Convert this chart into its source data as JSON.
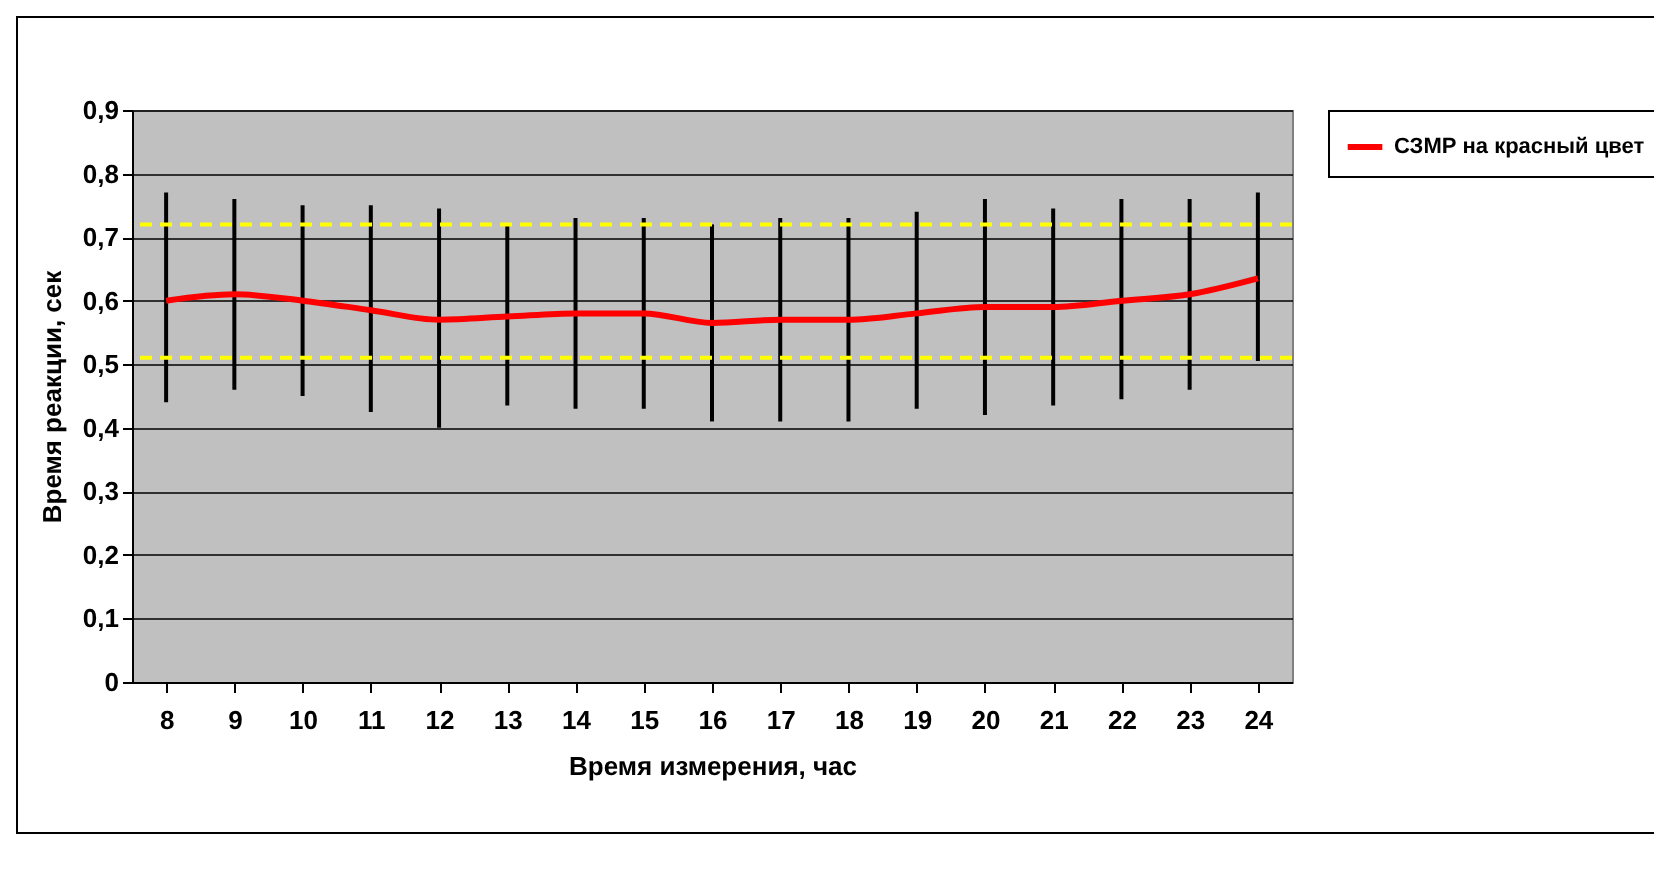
{
  "chart_data": {
    "type": "line",
    "xlabel": "Время измерения, час",
    "ylabel": "Время реакции, сек",
    "categories": [
      "8",
      "9",
      "10",
      "11",
      "12",
      "13",
      "14",
      "15",
      "16",
      "17",
      "18",
      "19",
      "20",
      "21",
      "22",
      "23",
      "24"
    ],
    "series": [
      {
        "name": "СЗМР на красный цвет",
        "color": "#ff0000",
        "values": [
          0.6,
          0.61,
          0.6,
          0.585,
          0.57,
          0.575,
          0.58,
          0.58,
          0.565,
          0.57,
          0.57,
          0.58,
          0.59,
          0.59,
          0.6,
          0.61,
          0.635
        ],
        "errors": [
          [
            0.44,
            0.77
          ],
          [
            0.46,
            0.76
          ],
          [
            0.45,
            0.75
          ],
          [
            0.425,
            0.75
          ],
          [
            0.4,
            0.745
          ],
          [
            0.435,
            0.72
          ],
          [
            0.43,
            0.73
          ],
          [
            0.43,
            0.73
          ],
          [
            0.41,
            0.72
          ],
          [
            0.41,
            0.73
          ],
          [
            0.41,
            0.73
          ],
          [
            0.43,
            0.74
          ],
          [
            0.42,
            0.76
          ],
          [
            0.435,
            0.745
          ],
          [
            0.445,
            0.76
          ],
          [
            0.46,
            0.76
          ],
          [
            0.505,
            0.77
          ]
        ]
      }
    ],
    "ylim": [
      0,
      0.9
    ],
    "yticks": [
      {
        "value": 0,
        "label": "0"
      },
      {
        "value": 0.1,
        "label": "0,1"
      },
      {
        "value": 0.2,
        "label": "0,2"
      },
      {
        "value": 0.3,
        "label": "0,3"
      },
      {
        "value": 0.4,
        "label": "0,4"
      },
      {
        "value": 0.5,
        "label": "0,5"
      },
      {
        "value": 0.6,
        "label": "0,6"
      },
      {
        "value": 0.7,
        "label": "0,7"
      },
      {
        "value": 0.8,
        "label": "0,8"
      },
      {
        "value": 0.9,
        "label": "0,9"
      }
    ],
    "ref_lines": [
      {
        "axis": "y",
        "value": 0.72,
        "color": "#ffff00",
        "line_style": "dashed"
      },
      {
        "axis": "y",
        "value": 0.51,
        "color": "#ffff00",
        "line_style": "dashed"
      }
    ],
    "grid": "y",
    "legend": "right",
    "marker": "none",
    "line_style": "solid"
  }
}
